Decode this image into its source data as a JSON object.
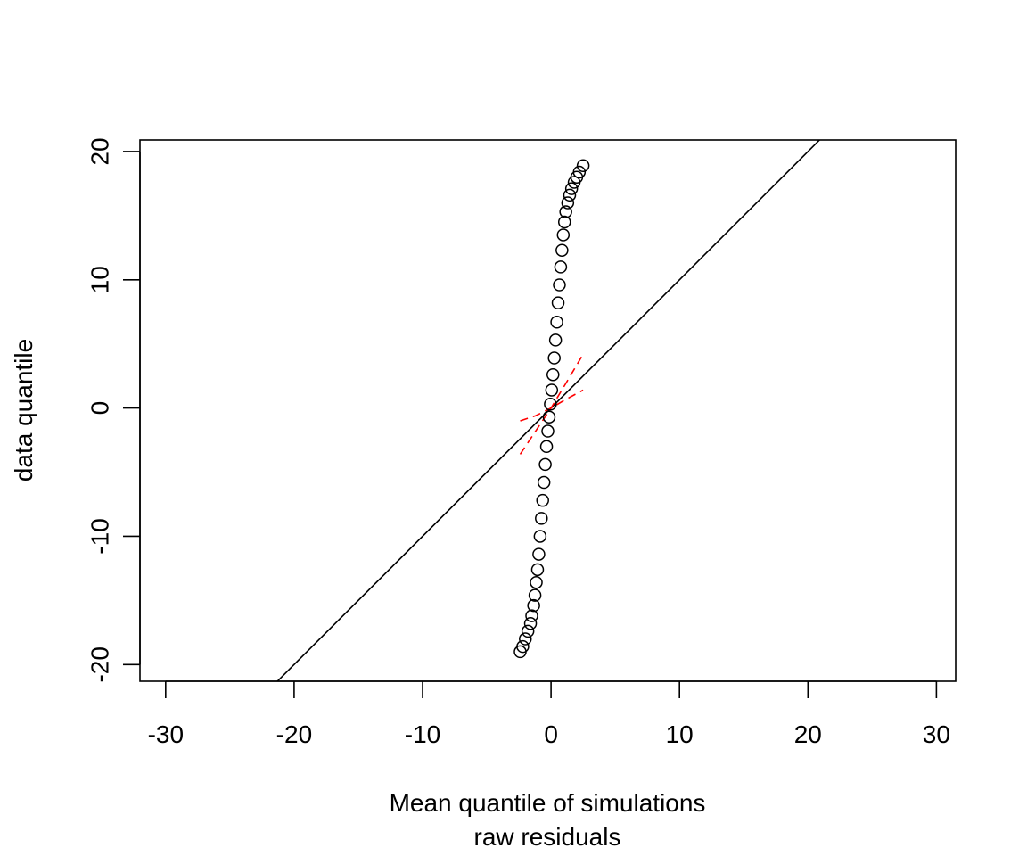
{
  "chart_data": {
    "type": "scatter",
    "title": "",
    "xlabel": "Mean quantile of simulations",
    "xlabel2": "raw residuals",
    "ylabel": "data quantile",
    "xlim": [
      -32,
      31.5
    ],
    "ylim": [
      -21.3,
      20.9
    ],
    "x_ticks": [
      -30,
      -20,
      -10,
      0,
      10,
      20,
      30
    ],
    "y_ticks": [
      -20,
      -10,
      0,
      10,
      20
    ],
    "x_tick_labels": [
      "-30",
      "-20",
      "-10",
      "0",
      "10",
      "20",
      "30"
    ],
    "y_tick_labels": [
      "-20",
      "-10",
      "0",
      "10",
      "20"
    ],
    "grid": false,
    "series": [
      {
        "x": [
          -2.4,
          -2.2,
          -2.0,
          -1.8,
          -1.6,
          -1.5,
          -1.35,
          -1.25,
          -1.15,
          -1.05,
          -0.95,
          -0.85,
          -0.75,
          -0.65,
          -0.55,
          -0.45,
          -0.35,
          -0.25,
          -0.15,
          -0.05,
          0.05,
          0.15,
          0.25,
          0.35,
          0.45,
          0.55,
          0.65,
          0.75,
          0.85,
          0.95,
          1.05,
          1.15,
          1.3,
          1.45,
          1.6,
          1.8,
          2.0,
          2.2,
          2.5
        ],
        "y": [
          -19.0,
          -18.6,
          -18.0,
          -17.4,
          -16.8,
          -16.2,
          -15.4,
          -14.6,
          -13.6,
          -12.6,
          -11.4,
          -10.0,
          -8.6,
          -7.2,
          -5.8,
          -4.4,
          -3.0,
          -1.8,
          -0.7,
          0.3,
          1.4,
          2.6,
          3.9,
          5.3,
          6.7,
          8.2,
          9.6,
          11.0,
          12.3,
          13.5,
          14.5,
          15.3,
          16.0,
          16.6,
          17.1,
          17.6,
          18.0,
          18.4,
          18.9
        ]
      }
    ],
    "reference_line": {
      "slope": 1,
      "intercept": 0
    },
    "envelope": {
      "upper_x": [
        -2.4,
        -1.2,
        0,
        1.2,
        2.5
      ],
      "upper_y": [
        -1.0,
        -0.6,
        0.0,
        0.7,
        1.4
      ],
      "lower_x": [
        -2.4,
        -1.2,
        0,
        1.2,
        2.5
      ],
      "lower_y": [
        -3.6,
        -1.8,
        0.0,
        2.0,
        4.2
      ]
    },
    "colors": {
      "points": "#000000",
      "reference_line": "#000000",
      "envelope": "#ff0000"
    }
  }
}
